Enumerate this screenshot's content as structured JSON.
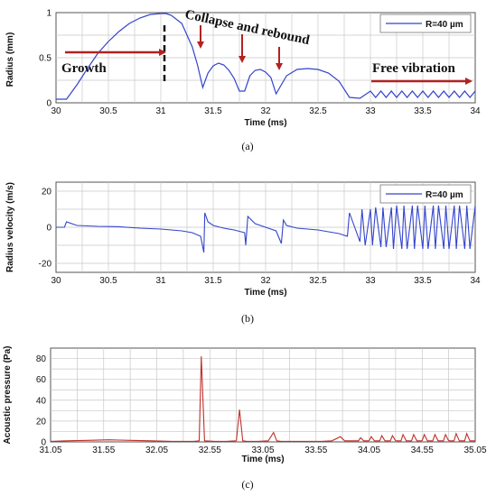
{
  "panels": [
    {
      "caption": "(a)",
      "annotations": {
        "growth": "Growth",
        "collapse": "Collapse and rebound",
        "free": "Free vibration"
      },
      "chart_data": {
        "type": "line",
        "title": "",
        "xlabel": "Time (ms)",
        "ylabel": "Radius (mm)",
        "xlim": [
          30,
          34
        ],
        "ylim": [
          0,
          1
        ],
        "x_ticks": [
          30,
          30.5,
          31,
          31.5,
          32,
          32.5,
          33,
          33.5,
          34
        ],
        "y_ticks": [
          0,
          0.5,
          1
        ],
        "grid": true,
        "legend": "top-right",
        "series": [
          {
            "name": "R=40 µm",
            "color": "#3344cc",
            "x": [
              30.0,
              30.1,
              30.2,
              30.3,
              30.4,
              30.5,
              30.6,
              30.7,
              30.8,
              30.9,
              31.0,
              31.05,
              31.1,
              31.2,
              31.3,
              31.35,
              31.4,
              31.45,
              31.5,
              31.55,
              31.6,
              31.65,
              31.7,
              31.75,
              31.8,
              31.85,
              31.9,
              31.95,
              32.0,
              32.05,
              32.1,
              32.15,
              32.2,
              32.3,
              32.4,
              32.5,
              32.6,
              32.7,
              32.8,
              32.9,
              33.0,
              33.05,
              33.1,
              33.15,
              33.2,
              33.25,
              33.3,
              33.35,
              33.4,
              33.45,
              33.5,
              33.55,
              33.6,
              33.65,
              33.7,
              33.75,
              33.8,
              33.85,
              33.9,
              33.95,
              34.0
            ],
            "values": [
              0.04,
              0.04,
              0.2,
              0.38,
              0.55,
              0.68,
              0.79,
              0.88,
              0.94,
              0.98,
              0.99,
              0.99,
              0.97,
              0.88,
              0.62,
              0.42,
              0.17,
              0.33,
              0.41,
              0.44,
              0.42,
              0.36,
              0.27,
              0.13,
              0.13,
              0.3,
              0.36,
              0.37,
              0.34,
              0.28,
              0.1,
              0.2,
              0.3,
              0.37,
              0.38,
              0.37,
              0.33,
              0.24,
              0.06,
              0.05,
              0.13,
              0.06,
              0.13,
              0.06,
              0.13,
              0.06,
              0.13,
              0.06,
              0.13,
              0.06,
              0.13,
              0.06,
              0.13,
              0.06,
              0.13,
              0.06,
              0.13,
              0.06,
              0.13,
              0.06,
              0.13
            ]
          }
        ]
      }
    },
    {
      "caption": "(b)",
      "chart_data": {
        "type": "line",
        "title": "",
        "xlabel": "Time (ms)",
        "ylabel": "Radius velocity (m/s)",
        "xlim": [
          30,
          34
        ],
        "ylim": [
          -25,
          25
        ],
        "x_ticks": [
          30,
          30.5,
          31,
          31.5,
          32,
          32.5,
          33,
          33.5,
          34
        ],
        "y_ticks": [
          -20,
          0,
          20
        ],
        "grid": true,
        "legend": "top-right",
        "series": [
          {
            "name": "R=40 µm",
            "color": "#3344cc",
            "x": [
              30.0,
              30.08,
              30.1,
              30.2,
              30.4,
              30.6,
              30.8,
              31.0,
              31.2,
              31.3,
              31.38,
              31.41,
              31.42,
              31.45,
              31.5,
              31.6,
              31.7,
              31.8,
              31.81,
              31.83,
              31.9,
              32.0,
              32.1,
              32.15,
              32.17,
              32.2,
              32.3,
              32.4,
              32.5,
              32.6,
              32.7,
              32.78,
              32.8,
              32.85,
              32.9,
              32.92,
              32.95,
              33.0,
              33.02,
              33.05,
              33.1,
              33.12,
              33.15,
              33.2,
              33.22,
              33.25,
              33.3,
              33.32,
              33.35,
              33.4,
              33.42,
              33.45,
              33.5,
              33.52,
              33.55,
              33.6,
              33.62,
              33.65,
              33.7,
              33.72,
              33.75,
              33.8,
              33.82,
              33.85,
              33.9,
              33.92,
              33.95,
              34.0
            ],
            "values": [
              0,
              0,
              3,
              1,
              0.5,
              0.3,
              -0.5,
              -1,
              -2,
              -3,
              -5,
              -14,
              8,
              3,
              1,
              -0.5,
              -1.5,
              -3,
              -10,
              6,
              2,
              0,
              -2,
              -9,
              4,
              1,
              -0.5,
              -1,
              -1.5,
              -2.5,
              -3.5,
              -5,
              8,
              0,
              -8,
              10,
              -10,
              10,
              -10,
              11,
              -11,
              11,
              -11,
              11,
              -12,
              12,
              -12,
              12,
              -12,
              12,
              -12,
              12,
              -12,
              12,
              -12,
              12,
              -12,
              12,
              -12,
              12,
              -12,
              12,
              -12,
              12,
              -12,
              12,
              -12,
              12
            ]
          }
        ]
      }
    },
    {
      "caption": "(c)",
      "chart_data": {
        "type": "line",
        "title": "",
        "xlabel": "Time (ms)",
        "ylabel": "Acoustic pressure (Pa)",
        "xlim": [
          31.05,
          35.05
        ],
        "ylim": [
          0,
          90
        ],
        "x_ticks": [
          31.05,
          31.55,
          32.05,
          32.55,
          33.05,
          33.55,
          34.05,
          34.55,
          35.05
        ],
        "y_ticks": [
          0,
          20,
          40,
          60,
          80
        ],
        "grid": true,
        "legend": "none",
        "series": [
          {
            "name": "",
            "color": "#c0302a",
            "x": [
              31.05,
              31.2,
              31.4,
              31.6,
              31.8,
              32.0,
              32.2,
              32.4,
              32.45,
              32.47,
              32.5,
              32.6,
              32.7,
              32.8,
              32.83,
              32.86,
              32.9,
              33.0,
              33.1,
              33.15,
              33.18,
              33.22,
              33.4,
              33.6,
              33.7,
              33.78,
              33.82,
              33.95,
              33.97,
              34.0,
              34.05,
              34.07,
              34.1,
              34.15,
              34.17,
              34.2,
              34.25,
              34.27,
              34.3,
              34.35,
              34.37,
              34.4,
              34.45,
              34.47,
              34.5,
              34.55,
              34.57,
              34.6,
              34.65,
              34.67,
              34.7,
              34.75,
              34.77,
              34.8,
              34.85,
              34.87,
              34.9,
              34.95,
              34.97,
              35.0,
              35.05
            ],
            "values": [
              0.5,
              1,
              1.5,
              2,
              1.5,
              1,
              0.5,
              0.5,
              1,
              82,
              1,
              0.5,
              0.5,
              1,
              31,
              1,
              0.5,
              0.5,
              1,
              9,
              1,
              0.5,
              0.5,
              0.5,
              1,
              5,
              1,
              1,
              4,
              1,
              1,
              5,
              1,
              1,
              6,
              1,
              1,
              6,
              1,
              1,
              7,
              1,
              1,
              7,
              1,
              1,
              7,
              1,
              1,
              7,
              1,
              1,
              7,
              1,
              1,
              8,
              1,
              1,
              8,
              1,
              1
            ]
          }
        ]
      }
    }
  ]
}
